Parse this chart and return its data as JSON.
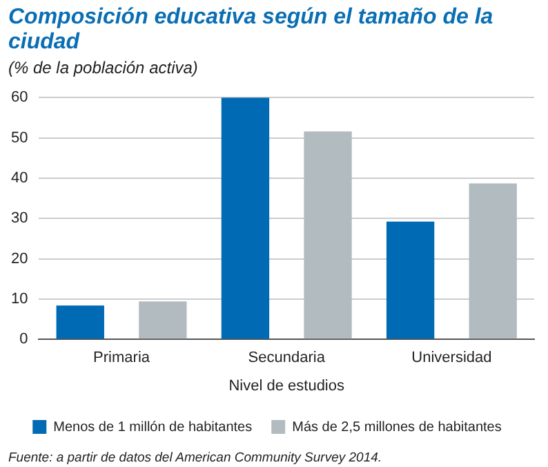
{
  "chart_data": {
    "type": "bar",
    "title": "Composición educativa según el tamaño de la ciudad",
    "subtitle": "(% de la población activa)",
    "xlabel": "Nivel de estudios",
    "categories": [
      "Primaria",
      "Secundaria",
      "Universidad"
    ],
    "series": [
      {
        "name": "Menos de 1 millón de habitantes",
        "color": "#006ab4",
        "values": [
          8.4,
          60,
          29.2
        ]
      },
      {
        "name": "Más de 2,5 millones de habitantes",
        "color": "#b2bcc0",
        "values": [
          9.4,
          51.6,
          38.7
        ]
      }
    ],
    "ylim": [
      0,
      60
    ],
    "yticks": [
      0,
      10,
      20,
      30,
      40,
      50,
      60
    ],
    "grid": "y",
    "legend": "bottom",
    "annotations": [
      "Fuente: a partir de datos del American Community Survey 2014."
    ]
  }
}
